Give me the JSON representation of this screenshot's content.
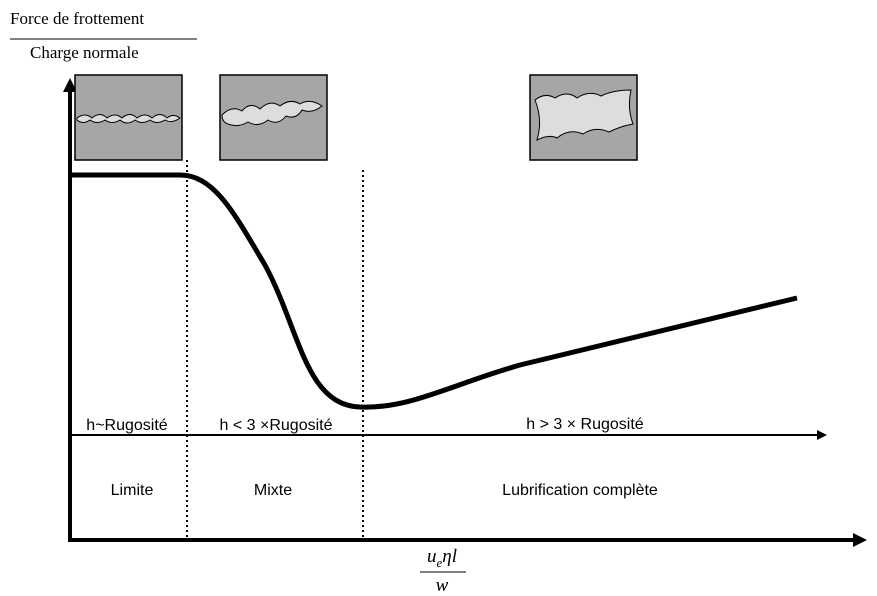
{
  "y_label": {
    "numerator": "Force de frottement",
    "denominator": "Charge normale"
  },
  "regions": [
    {
      "condition": "h~Rugosité",
      "label": "Limite"
    },
    {
      "condition": "h < 3 ×Rugosité",
      "label": "Mixte"
    },
    {
      "condition": "h > 3 × Rugosité",
      "label": "Lubrification complète"
    }
  ],
  "x_label": {
    "numerator": {
      "base": "u",
      "subscript": "e",
      "rest": "ηl"
    },
    "denominator": "w"
  }
}
